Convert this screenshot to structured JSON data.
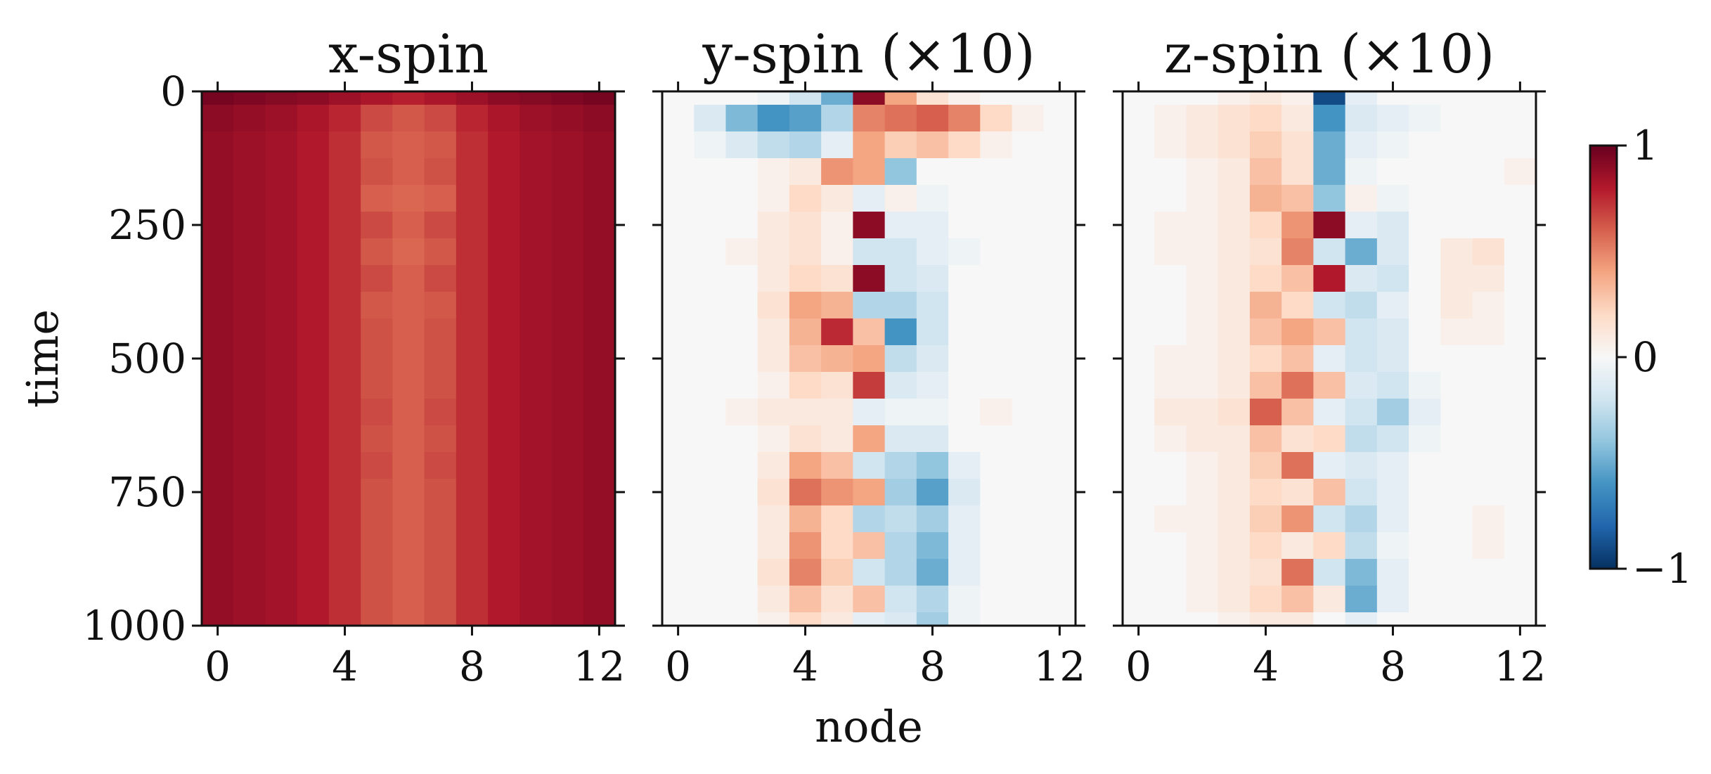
{
  "chart_data": {
    "type": "heatmap",
    "panels": [
      {
        "title": "x-spin",
        "nodes": [
          0,
          1,
          2,
          3,
          4,
          5,
          6,
          7,
          8,
          9,
          10,
          11,
          12
        ],
        "times": [
          0,
          50,
          100,
          150,
          200,
          250,
          300,
          350,
          400,
          450,
          500,
          550,
          600,
          650,
          700,
          750,
          800,
          850,
          900,
          950,
          1000
        ],
        "values": [
          [
            0.96,
            0.94,
            0.92,
            0.9,
            0.86,
            0.82,
            0.78,
            0.82,
            0.86,
            0.9,
            0.92,
            0.94,
            0.96
          ],
          [
            0.9,
            0.88,
            0.86,
            0.82,
            0.76,
            0.66,
            0.62,
            0.66,
            0.76,
            0.82,
            0.86,
            0.88,
            0.9
          ],
          [
            0.88,
            0.86,
            0.84,
            0.8,
            0.74,
            0.62,
            0.6,
            0.62,
            0.74,
            0.8,
            0.84,
            0.86,
            0.88
          ],
          [
            0.88,
            0.86,
            0.84,
            0.8,
            0.74,
            0.64,
            0.6,
            0.64,
            0.74,
            0.8,
            0.84,
            0.86,
            0.88
          ],
          [
            0.88,
            0.86,
            0.84,
            0.8,
            0.74,
            0.6,
            0.58,
            0.6,
            0.74,
            0.8,
            0.84,
            0.86,
            0.88
          ],
          [
            0.88,
            0.86,
            0.84,
            0.8,
            0.74,
            0.66,
            0.6,
            0.66,
            0.74,
            0.8,
            0.84,
            0.86,
            0.88
          ],
          [
            0.88,
            0.86,
            0.84,
            0.8,
            0.74,
            0.62,
            0.58,
            0.62,
            0.74,
            0.8,
            0.84,
            0.86,
            0.88
          ],
          [
            0.88,
            0.86,
            0.84,
            0.8,
            0.74,
            0.66,
            0.6,
            0.66,
            0.74,
            0.8,
            0.84,
            0.86,
            0.88
          ],
          [
            0.88,
            0.86,
            0.84,
            0.8,
            0.74,
            0.62,
            0.6,
            0.62,
            0.74,
            0.8,
            0.84,
            0.86,
            0.88
          ],
          [
            0.88,
            0.86,
            0.84,
            0.8,
            0.74,
            0.64,
            0.6,
            0.64,
            0.74,
            0.8,
            0.84,
            0.86,
            0.88
          ],
          [
            0.88,
            0.86,
            0.84,
            0.8,
            0.74,
            0.64,
            0.6,
            0.64,
            0.74,
            0.8,
            0.84,
            0.86,
            0.88
          ],
          [
            0.88,
            0.86,
            0.84,
            0.8,
            0.74,
            0.64,
            0.6,
            0.64,
            0.74,
            0.8,
            0.84,
            0.86,
            0.88
          ],
          [
            0.88,
            0.86,
            0.84,
            0.8,
            0.74,
            0.66,
            0.6,
            0.66,
            0.74,
            0.8,
            0.84,
            0.86,
            0.88
          ],
          [
            0.88,
            0.86,
            0.84,
            0.8,
            0.74,
            0.64,
            0.6,
            0.64,
            0.74,
            0.8,
            0.84,
            0.86,
            0.88
          ],
          [
            0.88,
            0.86,
            0.84,
            0.8,
            0.74,
            0.66,
            0.6,
            0.66,
            0.74,
            0.8,
            0.84,
            0.86,
            0.88
          ],
          [
            0.88,
            0.86,
            0.84,
            0.8,
            0.74,
            0.64,
            0.6,
            0.64,
            0.74,
            0.8,
            0.84,
            0.86,
            0.88
          ],
          [
            0.88,
            0.86,
            0.84,
            0.8,
            0.74,
            0.64,
            0.6,
            0.64,
            0.74,
            0.8,
            0.84,
            0.86,
            0.88
          ],
          [
            0.88,
            0.86,
            0.84,
            0.8,
            0.74,
            0.64,
            0.6,
            0.64,
            0.74,
            0.8,
            0.84,
            0.86,
            0.88
          ],
          [
            0.88,
            0.86,
            0.84,
            0.8,
            0.74,
            0.64,
            0.6,
            0.64,
            0.74,
            0.8,
            0.84,
            0.86,
            0.88
          ],
          [
            0.88,
            0.86,
            0.84,
            0.8,
            0.74,
            0.64,
            0.6,
            0.64,
            0.74,
            0.8,
            0.84,
            0.86,
            0.88
          ],
          [
            0.88,
            0.86,
            0.84,
            0.8,
            0.74,
            0.64,
            0.6,
            0.64,
            0.74,
            0.8,
            0.84,
            0.86,
            0.88
          ]
        ]
      },
      {
        "title": "y-spin (×10)",
        "nodes": [
          0,
          1,
          2,
          3,
          4,
          5,
          6,
          7,
          8,
          9,
          10,
          11,
          12
        ],
        "times": [
          0,
          50,
          100,
          150,
          200,
          250,
          300,
          350,
          400,
          450,
          500,
          550,
          600,
          650,
          700,
          750,
          800,
          850,
          900,
          950,
          1000
        ],
        "values": [
          [
            0,
            0,
            0,
            -0.05,
            -0.2,
            -0.5,
            0.9,
            0.4,
            0.15,
            0.05,
            0,
            0,
            0
          ],
          [
            0,
            -0.15,
            -0.45,
            -0.6,
            -0.55,
            -0.3,
            0.5,
            0.55,
            0.6,
            0.5,
            0.2,
            0.05,
            0
          ],
          [
            0,
            -0.05,
            -0.15,
            -0.25,
            -0.3,
            -0.1,
            0.4,
            0.25,
            0.3,
            0.2,
            0.05,
            0,
            0
          ],
          [
            0,
            0,
            0,
            0.05,
            0.1,
            0.45,
            0.4,
            -0.4,
            0,
            0,
            0,
            0,
            0
          ],
          [
            0,
            0,
            0,
            0.05,
            0.2,
            0.1,
            -0.1,
            0.05,
            -0.05,
            0,
            0,
            0,
            0
          ],
          [
            0,
            0,
            0,
            0.1,
            0.15,
            0.05,
            0.9,
            -0.1,
            -0.1,
            0,
            0,
            0,
            0
          ],
          [
            0,
            0,
            0.05,
            0.1,
            0.15,
            0.05,
            -0.2,
            -0.2,
            -0.1,
            -0.05,
            0,
            0,
            0
          ],
          [
            0,
            0,
            0,
            0.1,
            0.2,
            0.15,
            0.9,
            -0.2,
            -0.15,
            0,
            0,
            0,
            0
          ],
          [
            0,
            0,
            0,
            0.15,
            0.4,
            0.35,
            -0.3,
            -0.3,
            -0.2,
            0,
            0,
            0,
            0
          ],
          [
            0,
            0,
            0,
            0.1,
            0.35,
            0.75,
            0.3,
            -0.6,
            -0.2,
            0,
            0,
            0,
            0
          ],
          [
            0,
            0,
            0,
            0.1,
            0.3,
            0.35,
            0.4,
            -0.25,
            -0.15,
            0,
            0,
            0,
            0
          ],
          [
            0,
            0,
            0,
            0.05,
            0.2,
            0.15,
            0.7,
            -0.15,
            -0.1,
            0,
            0,
            0,
            0
          ],
          [
            0,
            0,
            0.05,
            0.1,
            0.1,
            0.1,
            -0.1,
            -0.05,
            -0.05,
            0,
            0.05,
            0,
            0
          ],
          [
            0,
            0,
            0,
            0.05,
            0.15,
            0.1,
            0.4,
            -0.15,
            -0.15,
            0,
            0,
            0,
            0
          ],
          [
            0,
            0,
            0,
            0.1,
            0.4,
            0.3,
            -0.2,
            -0.3,
            -0.4,
            -0.1,
            0,
            0,
            0
          ],
          [
            0,
            0,
            0,
            0.15,
            0.55,
            0.45,
            0.4,
            -0.35,
            -0.55,
            -0.15,
            0,
            0,
            0
          ],
          [
            0,
            0,
            0,
            0.1,
            0.35,
            0.2,
            -0.3,
            -0.25,
            -0.35,
            -0.1,
            0,
            0,
            0
          ],
          [
            0,
            0,
            0,
            0.1,
            0.45,
            0.2,
            0.3,
            -0.3,
            -0.45,
            -0.1,
            0,
            0,
            0
          ],
          [
            0,
            0,
            0,
            0.15,
            0.5,
            0.25,
            -0.2,
            -0.3,
            -0.5,
            -0.1,
            0,
            0,
            0
          ],
          [
            0,
            0,
            0,
            0.1,
            0.3,
            0.15,
            0.3,
            -0.2,
            -0.3,
            -0.05,
            0,
            0,
            0
          ],
          [
            0,
            0,
            0,
            0.05,
            0.2,
            0.1,
            -0.1,
            -0.15,
            -0.35,
            -0.05,
            0,
            0,
            0
          ]
        ]
      },
      {
        "title": "z-spin (×10)",
        "nodes": [
          0,
          1,
          2,
          3,
          4,
          5,
          6,
          7,
          8,
          9,
          10,
          11,
          12
        ],
        "times": [
          0,
          50,
          100,
          150,
          200,
          250,
          300,
          350,
          400,
          450,
          500,
          550,
          600,
          650,
          700,
          750,
          800,
          850,
          900,
          950,
          1000
        ],
        "values": [
          [
            0,
            0,
            0,
            0.05,
            0.1,
            0.05,
            -0.9,
            -0.1,
            0,
            0,
            0,
            0,
            0
          ],
          [
            0,
            0.05,
            0.1,
            0.15,
            0.2,
            0.1,
            -0.6,
            -0.15,
            -0.1,
            -0.05,
            0,
            0,
            0
          ],
          [
            0,
            0.05,
            0.1,
            0.15,
            0.25,
            0.15,
            -0.5,
            -0.1,
            -0.05,
            0,
            0,
            0,
            0
          ],
          [
            0,
            0,
            0.05,
            0.1,
            0.3,
            0.15,
            -0.5,
            -0.05,
            0,
            0,
            0,
            0,
            0.05
          ],
          [
            0,
            0,
            0.05,
            0.1,
            0.35,
            0.3,
            -0.4,
            0.05,
            -0.05,
            0,
            0,
            0,
            0
          ],
          [
            0,
            0.05,
            0.05,
            0.1,
            0.2,
            0.45,
            0.9,
            -0.1,
            -0.15,
            0,
            0,
            0,
            0
          ],
          [
            0,
            0.05,
            0.05,
            0.1,
            0.15,
            0.5,
            -0.2,
            -0.5,
            -0.15,
            0,
            0.1,
            0.15,
            0
          ],
          [
            0,
            0,
            0.05,
            0.1,
            0.2,
            0.3,
            0.8,
            -0.15,
            -0.2,
            0,
            0.1,
            0.1,
            0
          ],
          [
            0,
            0,
            0.05,
            0.1,
            0.35,
            0.2,
            -0.2,
            -0.25,
            -0.1,
            0,
            0.1,
            0.05,
            0
          ],
          [
            0,
            0,
            0.05,
            0.1,
            0.3,
            0.4,
            0.3,
            -0.2,
            -0.15,
            0,
            0.05,
            0.05,
            0
          ],
          [
            0,
            0.05,
            0.05,
            0.1,
            0.2,
            0.3,
            -0.1,
            -0.2,
            -0.15,
            0,
            0,
            0,
            0
          ],
          [
            0,
            0.05,
            0.05,
            0.1,
            0.3,
            0.55,
            0.3,
            -0.15,
            -0.2,
            -0.05,
            0,
            0,
            0
          ],
          [
            0,
            0.1,
            0.1,
            0.15,
            0.6,
            0.3,
            -0.1,
            -0.2,
            -0.35,
            -0.1,
            0,
            0,
            0
          ],
          [
            0,
            0.05,
            0.1,
            0.1,
            0.3,
            0.15,
            0.2,
            -0.25,
            -0.2,
            -0.05,
            0,
            0,
            0
          ],
          [
            0,
            0,
            0.05,
            0.1,
            0.25,
            0.55,
            -0.1,
            -0.15,
            -0.1,
            0,
            0,
            0,
            0
          ],
          [
            0,
            0,
            0.05,
            0.1,
            0.2,
            0.15,
            0.3,
            -0.2,
            -0.1,
            0,
            0,
            0,
            0
          ],
          [
            0,
            0.05,
            0.05,
            0.1,
            0.25,
            0.45,
            -0.2,
            -0.3,
            -0.1,
            0,
            0,
            0.05,
            0
          ],
          [
            0,
            0,
            0.05,
            0.1,
            0.2,
            0.1,
            0.2,
            -0.25,
            -0.05,
            0,
            0,
            0.05,
            0
          ],
          [
            0,
            0,
            0.05,
            0.1,
            0.15,
            0.55,
            -0.2,
            -0.45,
            -0.1,
            0,
            0,
            0,
            0
          ],
          [
            0,
            0,
            0.05,
            0.1,
            0.2,
            0.3,
            0.1,
            -0.5,
            -0.1,
            0,
            0,
            0,
            0
          ],
          [
            0,
            0,
            0,
            0.05,
            0.1,
            0.1,
            0,
            -0.1,
            0,
            0,
            0,
            0,
            0
          ]
        ]
      }
    ],
    "xlabel": "node",
    "ylabel": "time",
    "xticks": [
      0,
      4,
      8,
      12
    ],
    "yticks": [
      0,
      250,
      500,
      750,
      1000
    ],
    "xlim": [
      -0.5,
      12.5
    ],
    "ylim": [
      0,
      1000
    ],
    "y_inverted": true,
    "colormap": "RdBu_r",
    "clim": [
      -1,
      1
    ],
    "colorbar_ticks": [
      1,
      0,
      -1
    ],
    "colorbar_tick_labels": [
      "1",
      "0",
      "−1"
    ],
    "grid": false
  }
}
